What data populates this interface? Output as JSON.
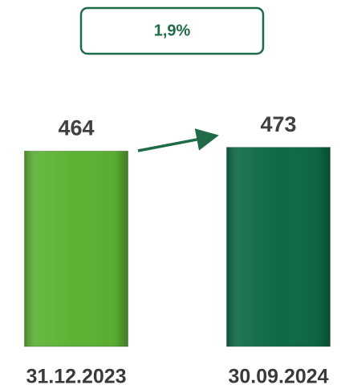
{
  "chart_data": {
    "type": "bar",
    "annotation": "1,9%",
    "categories": [
      "31.12.2023",
      "30.09.2024"
    ],
    "values": [
      464,
      473
    ],
    "colors": [
      "#5cb234",
      "#0d6a45"
    ],
    "ylim": [
      0,
      480
    ]
  }
}
